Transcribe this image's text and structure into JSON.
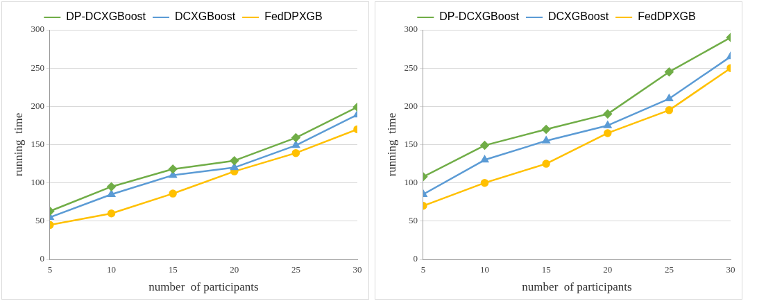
{
  "chart_data": [
    {
      "type": "line",
      "xlabel": "number  of participants",
      "ylabel": "running  time",
      "x": [
        5,
        10,
        15,
        20,
        25,
        30
      ],
      "xlim": [
        5,
        30
      ],
      "xticks": [
        5,
        10,
        15,
        20,
        25,
        30
      ],
      "ylim": [
        0,
        300
      ],
      "yticks": [
        0,
        50,
        100,
        150,
        200,
        250,
        300
      ],
      "grid": "y",
      "legend": "top",
      "line_style": "solid",
      "series": [
        {
          "name": "DP-DCXGBoost",
          "color": "#70ad47",
          "marker": "diamond",
          "values": [
            63,
            95,
            118,
            129,
            159,
            199
          ]
        },
        {
          "name": "DCXGBoost",
          "color": "#5b9bd5",
          "marker": "triangle",
          "values": [
            55,
            85,
            110,
            120,
            149,
            189
          ]
        },
        {
          "name": "FedDPXGB",
          "color": "#ffc000",
          "marker": "circle",
          "values": [
            45,
            60,
            86,
            115,
            139,
            170
          ]
        }
      ]
    },
    {
      "type": "line",
      "xlabel": "number  of participants",
      "ylabel": "running  time",
      "x": [
        5,
        10,
        15,
        20,
        25,
        30
      ],
      "xlim": [
        5,
        30
      ],
      "xticks": [
        5,
        10,
        15,
        20,
        25,
        30
      ],
      "ylim": [
        0,
        300
      ],
      "yticks": [
        0,
        50,
        100,
        150,
        200,
        250,
        300
      ],
      "grid": "y",
      "legend": "top",
      "line_style": "solid",
      "series": [
        {
          "name": "DP-DCXGBoost",
          "color": "#70ad47",
          "marker": "diamond",
          "values": [
            108,
            149,
            170,
            190,
            245,
            290
          ]
        },
        {
          "name": "DCXGBoost",
          "color": "#5b9bd5",
          "marker": "triangle",
          "values": [
            85,
            130,
            155,
            175,
            210,
            265
          ]
        },
        {
          "name": "FedDPXGB",
          "color": "#ffc000",
          "marker": "circle",
          "values": [
            70,
            100,
            125,
            165,
            195,
            250
          ]
        }
      ]
    }
  ]
}
